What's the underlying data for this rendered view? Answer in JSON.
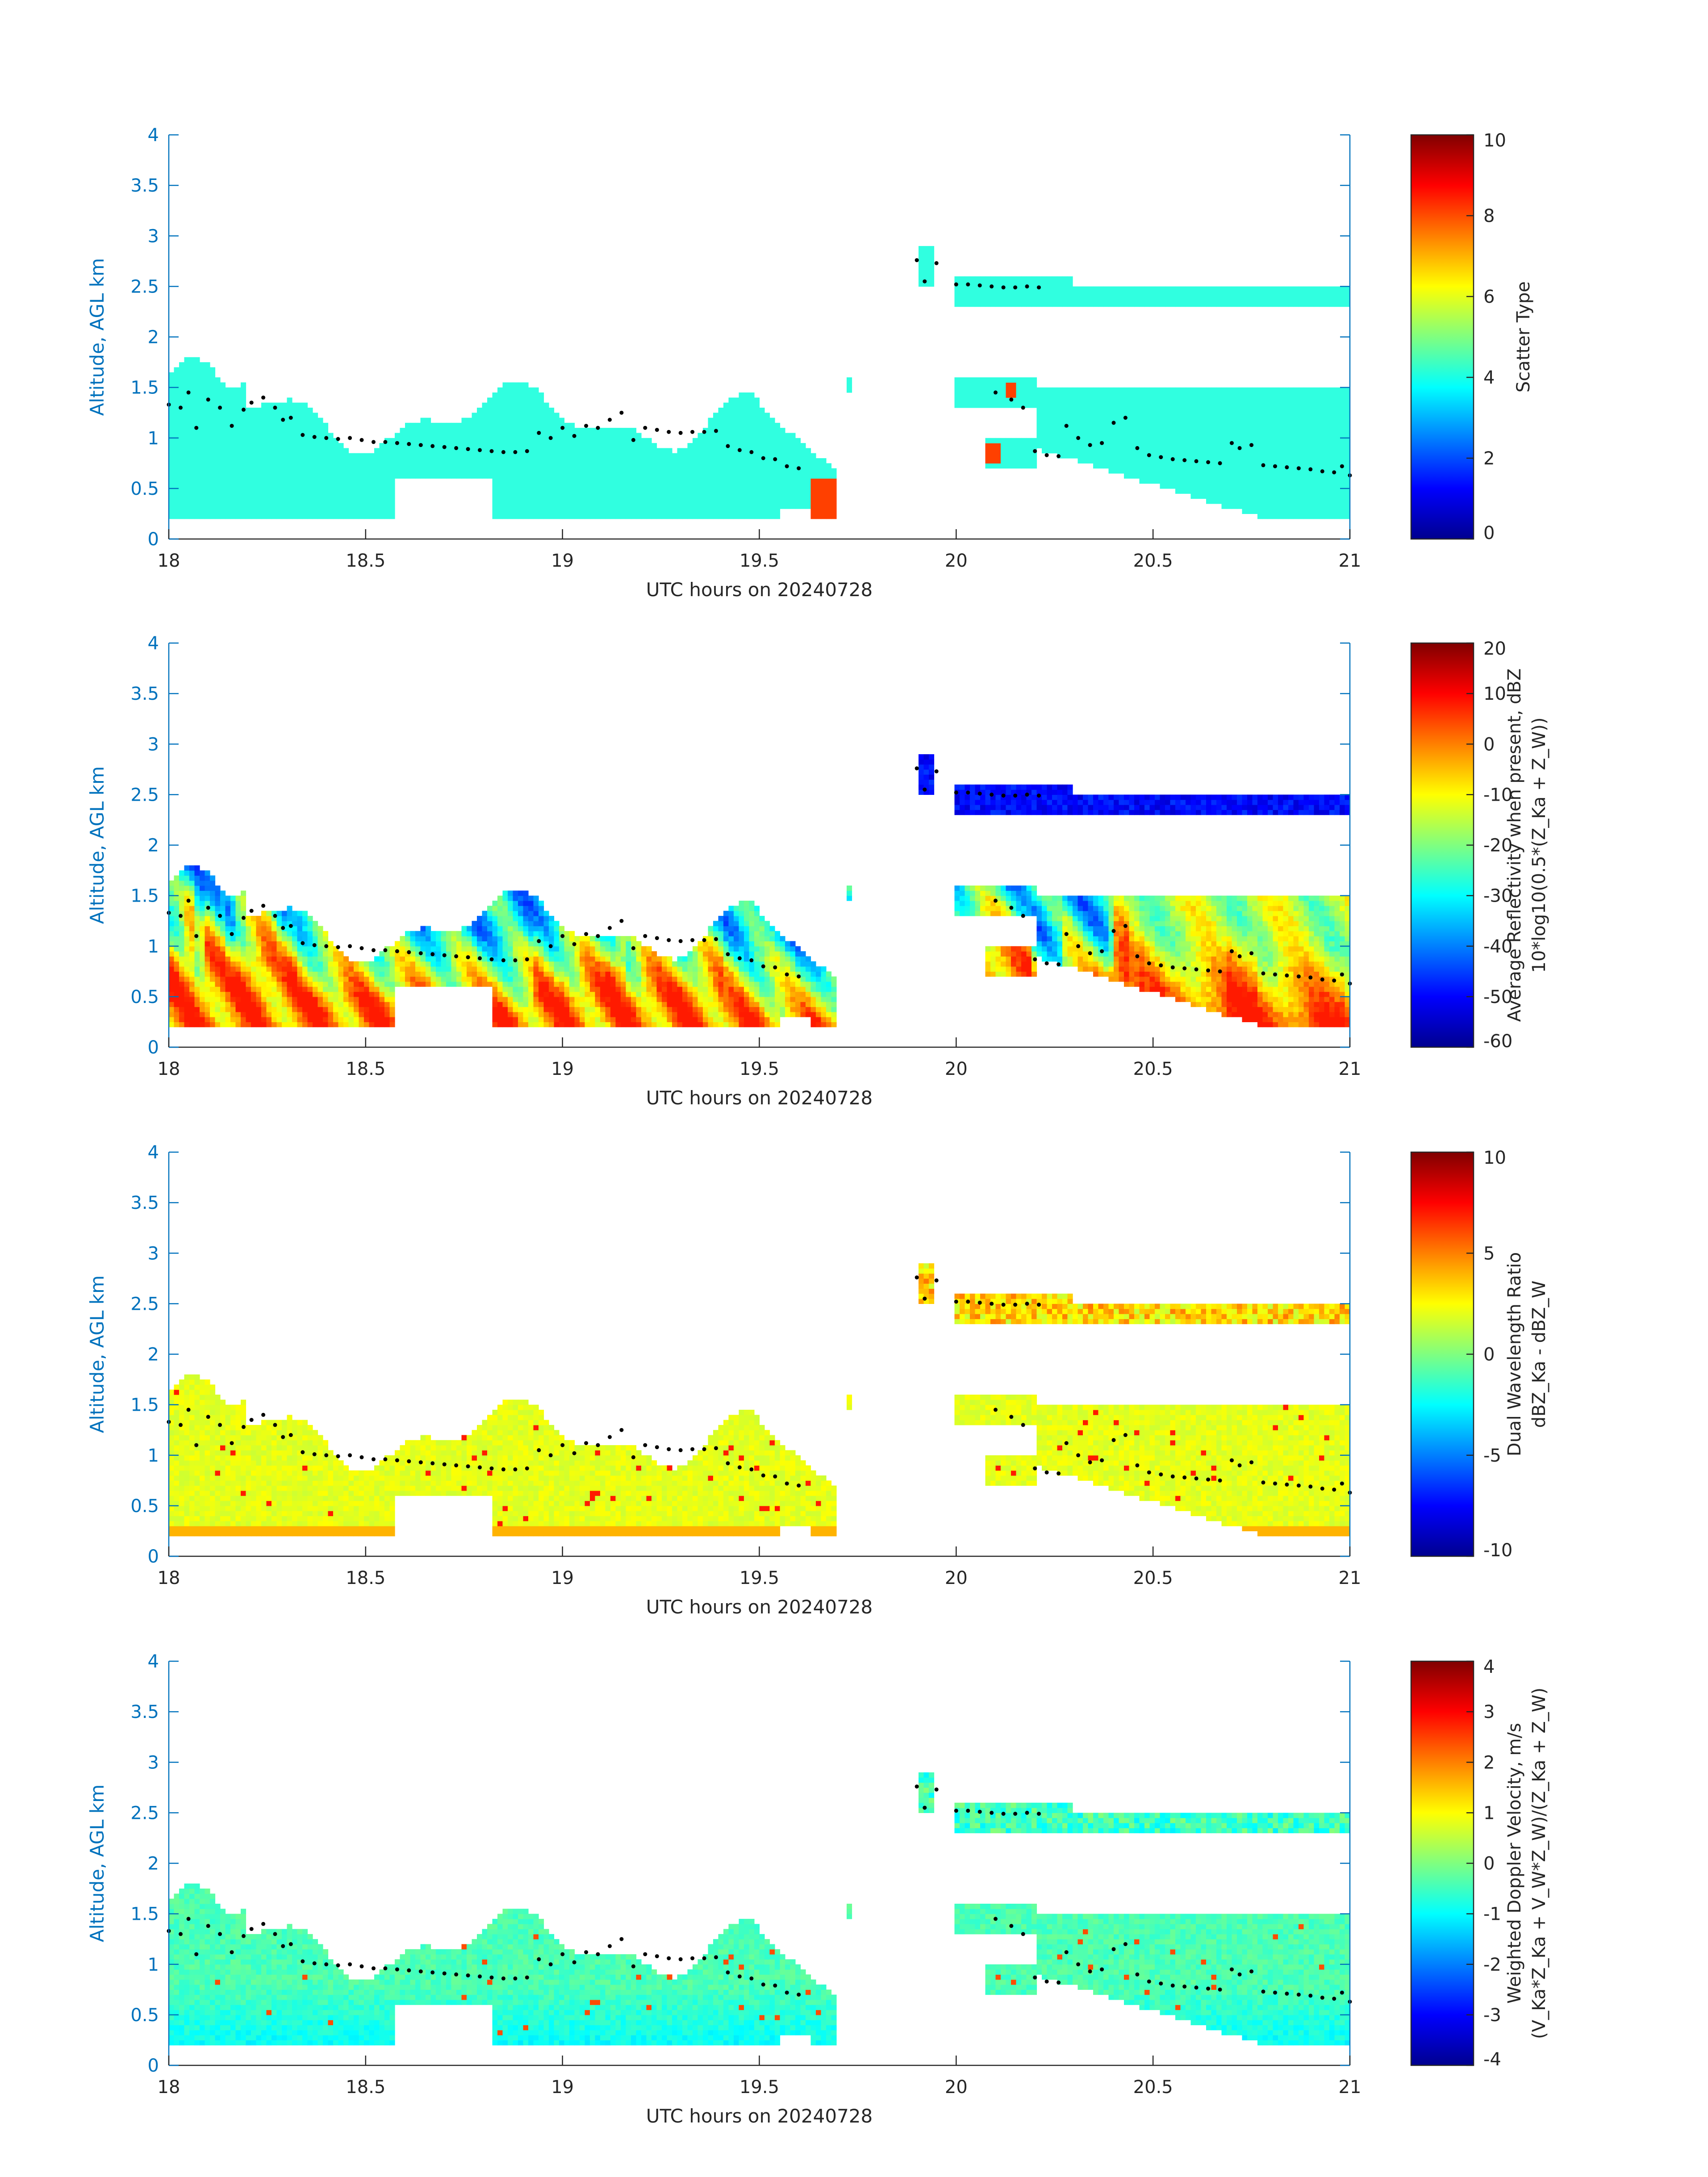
{
  "figure": {
    "date_label": "UTC hours on 20240728"
  },
  "chart_data": [
    {
      "type": "heatmap",
      "title": "",
      "xlabel": "UTC hours on 20240728",
      "ylabel": "Altitude, AGL km",
      "x_ticks": [
        "18",
        "18.5",
        "19",
        "19.5",
        "20",
        "20.5",
        "21"
      ],
      "y_ticks": [
        "0",
        "0.5",
        "1",
        "1.5",
        "2",
        "2.5",
        "3",
        "3.5",
        "4"
      ],
      "xlim": [
        18,
        21
      ],
      "ylim": [
        0,
        4
      ],
      "colorbar": {
        "label_lines": [
          "Scatter Type"
        ],
        "ticks": [
          "0",
          "2",
          "4",
          "6",
          "8",
          "10"
        ],
        "range": [
          0,
          10
        ]
      },
      "field": "scatter_type"
    },
    {
      "type": "heatmap",
      "title": "",
      "xlabel": "UTC hours on 20240728",
      "ylabel": "Altitude, AGL km",
      "x_ticks": [
        "18",
        "18.5",
        "19",
        "19.5",
        "20",
        "20.5",
        "21"
      ],
      "y_ticks": [
        "0",
        "0.5",
        "1",
        "1.5",
        "2",
        "2.5",
        "3",
        "3.5",
        "4"
      ],
      "xlim": [
        18,
        21
      ],
      "ylim": [
        0,
        4
      ],
      "colorbar": {
        "label_lines": [
          "Average Reflectivity when present, dBZ",
          "10*log10(0.5*(Z_Ka + Z_W))"
        ],
        "ticks": [
          "-60",
          "-50",
          "-40",
          "-30",
          "-20",
          "-10",
          "0",
          "10",
          "20"
        ],
        "range": [
          -60,
          20
        ]
      },
      "field": "reflectivity"
    },
    {
      "type": "heatmap",
      "title": "",
      "xlabel": "UTC hours on 20240728",
      "ylabel": "Altitude, AGL km",
      "x_ticks": [
        "18",
        "18.5",
        "19",
        "19.5",
        "20",
        "20.5",
        "21"
      ],
      "y_ticks": [
        "0",
        "0.5",
        "1",
        "1.5",
        "2",
        "2.5",
        "3",
        "3.5",
        "4"
      ],
      "xlim": [
        18,
        21
      ],
      "ylim": [
        0,
        4
      ],
      "colorbar": {
        "label_lines": [
          "Dual Wavelength Ratio",
          "dBZ_Ka - dBZ_W"
        ],
        "ticks": [
          "-10",
          "-5",
          "0",
          "5",
          "10"
        ],
        "range": [
          -10,
          10
        ]
      },
      "field": "dwr"
    },
    {
      "type": "heatmap",
      "title": "",
      "xlabel": "UTC hours on 20240728",
      "ylabel": "Altitude, AGL km",
      "x_ticks": [
        "18",
        "18.5",
        "19",
        "19.5",
        "20",
        "20.5",
        "21"
      ],
      "y_ticks": [
        "0",
        "0.5",
        "1",
        "1.5",
        "2",
        "2.5",
        "3",
        "3.5",
        "4"
      ],
      "xlim": [
        18,
        21
      ],
      "ylim": [
        0,
        4
      ],
      "colorbar": {
        "label_lines": [
          "Weighted Doppler Velocity, m/s",
          "(V_Ka*Z_Ka + V_W*Z_W)/(Z_Ka + Z_W)"
        ],
        "ticks": [
          "-4",
          "-3",
          "-2",
          "-1",
          "0",
          "1",
          "2",
          "3",
          "4"
        ],
        "range": [
          -4,
          4
        ]
      },
      "field": "velocity"
    }
  ],
  "cloud_base_points": [
    [
      18.0,
      1.33
    ],
    [
      18.03,
      1.3
    ],
    [
      18.05,
      1.45
    ],
    [
      18.07,
      1.1
    ],
    [
      18.1,
      1.38
    ],
    [
      18.13,
      1.3
    ],
    [
      18.16,
      1.12
    ],
    [
      18.19,
      1.28
    ],
    [
      18.21,
      1.35
    ],
    [
      18.24,
      1.4
    ],
    [
      18.27,
      1.3
    ],
    [
      18.29,
      1.18
    ],
    [
      18.31,
      1.2
    ],
    [
      18.34,
      1.03
    ],
    [
      18.37,
      1.01
    ],
    [
      18.4,
      1.0
    ],
    [
      18.43,
      0.99
    ],
    [
      18.46,
      1.0
    ],
    [
      18.49,
      0.98
    ],
    [
      18.52,
      0.96
    ],
    [
      18.55,
      0.96
    ],
    [
      18.58,
      0.95
    ],
    [
      18.61,
      0.94
    ],
    [
      18.64,
      0.93
    ],
    [
      18.67,
      0.92
    ],
    [
      18.7,
      0.91
    ],
    [
      18.73,
      0.9
    ],
    [
      18.76,
      0.89
    ],
    [
      18.79,
      0.88
    ],
    [
      18.82,
      0.87
    ],
    [
      18.85,
      0.86
    ],
    [
      18.88,
      0.86
    ],
    [
      18.91,
      0.87
    ],
    [
      18.94,
      1.05
    ],
    [
      18.97,
      1.0
    ],
    [
      19.0,
      1.1
    ],
    [
      19.03,
      1.02
    ],
    [
      19.06,
      1.12
    ],
    [
      19.09,
      1.1
    ],
    [
      19.12,
      1.18
    ],
    [
      19.15,
      1.25
    ],
    [
      19.18,
      0.98
    ],
    [
      19.21,
      1.1
    ],
    [
      19.24,
      1.08
    ],
    [
      19.27,
      1.06
    ],
    [
      19.3,
      1.05
    ],
    [
      19.33,
      1.06
    ],
    [
      19.36,
      1.06
    ],
    [
      19.39,
      1.07
    ],
    [
      19.42,
      0.92
    ],
    [
      19.45,
      0.88
    ],
    [
      19.48,
      0.86
    ],
    [
      19.51,
      0.8
    ],
    [
      19.54,
      0.79
    ],
    [
      19.57,
      0.72
    ],
    [
      19.6,
      0.7
    ],
    [
      19.9,
      2.76
    ],
    [
      19.92,
      2.55
    ],
    [
      19.95,
      2.73
    ],
    [
      20.0,
      2.52
    ],
    [
      20.03,
      2.52
    ],
    [
      20.06,
      2.51
    ],
    [
      20.09,
      2.5
    ],
    [
      20.12,
      2.49
    ],
    [
      20.15,
      2.49
    ],
    [
      20.18,
      2.5
    ],
    [
      20.21,
      2.49
    ],
    [
      20.1,
      1.45
    ],
    [
      20.14,
      1.38
    ],
    [
      20.17,
      1.3
    ],
    [
      20.2,
      0.87
    ],
    [
      20.23,
      0.83
    ],
    [
      20.26,
      0.82
    ],
    [
      20.28,
      1.12
    ],
    [
      20.31,
      1.0
    ],
    [
      20.34,
      0.93
    ],
    [
      20.37,
      0.95
    ],
    [
      20.4,
      1.15
    ],
    [
      20.43,
      1.2
    ],
    [
      20.46,
      0.9
    ],
    [
      20.49,
      0.83
    ],
    [
      20.52,
      0.81
    ],
    [
      20.55,
      0.79
    ],
    [
      20.58,
      0.78
    ],
    [
      20.61,
      0.77
    ],
    [
      20.64,
      0.76
    ],
    [
      20.67,
      0.75
    ],
    [
      20.7,
      0.95
    ],
    [
      20.72,
      0.9
    ],
    [
      20.75,
      0.93
    ],
    [
      20.78,
      0.73
    ],
    [
      20.81,
      0.72
    ],
    [
      20.84,
      0.71
    ],
    [
      20.87,
      0.7
    ],
    [
      20.9,
      0.69
    ],
    [
      20.93,
      0.67
    ],
    [
      20.96,
      0.66
    ],
    [
      20.98,
      0.72
    ],
    [
      21.0,
      0.63
    ]
  ]
}
